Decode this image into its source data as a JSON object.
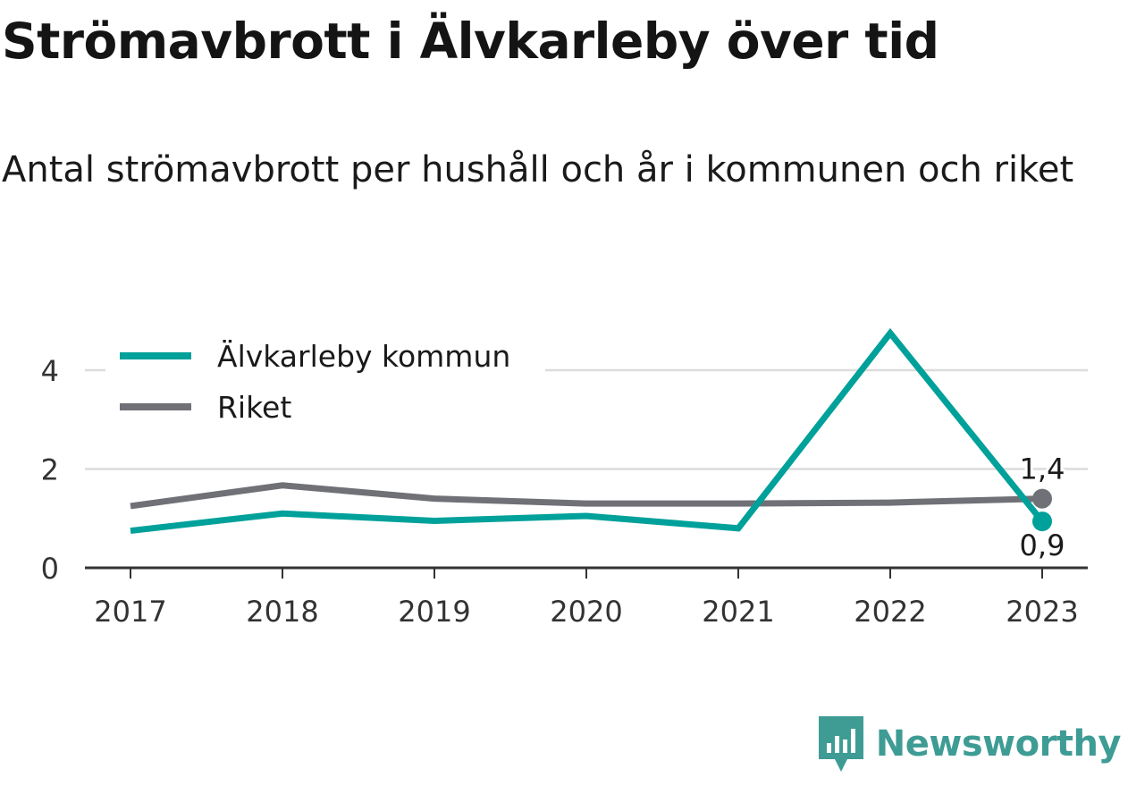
{
  "chart_data": {
    "type": "line",
    "title": "Strömavbrott i Älvkarleby över tid",
    "subtitle": "Antal strömavbrott per hushåll och år i kommunen och riket",
    "x": [
      "2017",
      "2018",
      "2019",
      "2020",
      "2021",
      "2022",
      "2023"
    ],
    "series": [
      {
        "name": "Älvkarleby kommun",
        "color": "#00a19a",
        "values": [
          0.75,
          1.1,
          0.95,
          1.05,
          0.8,
          4.75,
          0.94
        ],
        "end_label": "0,9"
      },
      {
        "name": "Riket",
        "color": "#707077",
        "values": [
          1.25,
          1.67,
          1.4,
          1.3,
          1.3,
          1.32,
          1.4
        ],
        "end_label": "1,4"
      }
    ],
    "y_ticks": [
      0,
      2,
      4
    ],
    "y_tick_labels": [
      "0",
      "2",
      "4"
    ],
    "ylim": [
      0,
      4.75
    ],
    "grid": true,
    "legend_position": "top-left"
  },
  "branding": {
    "name": "Newsworthy",
    "color": "#3e9c95",
    "icon": "newsworthy-logo-icon"
  }
}
